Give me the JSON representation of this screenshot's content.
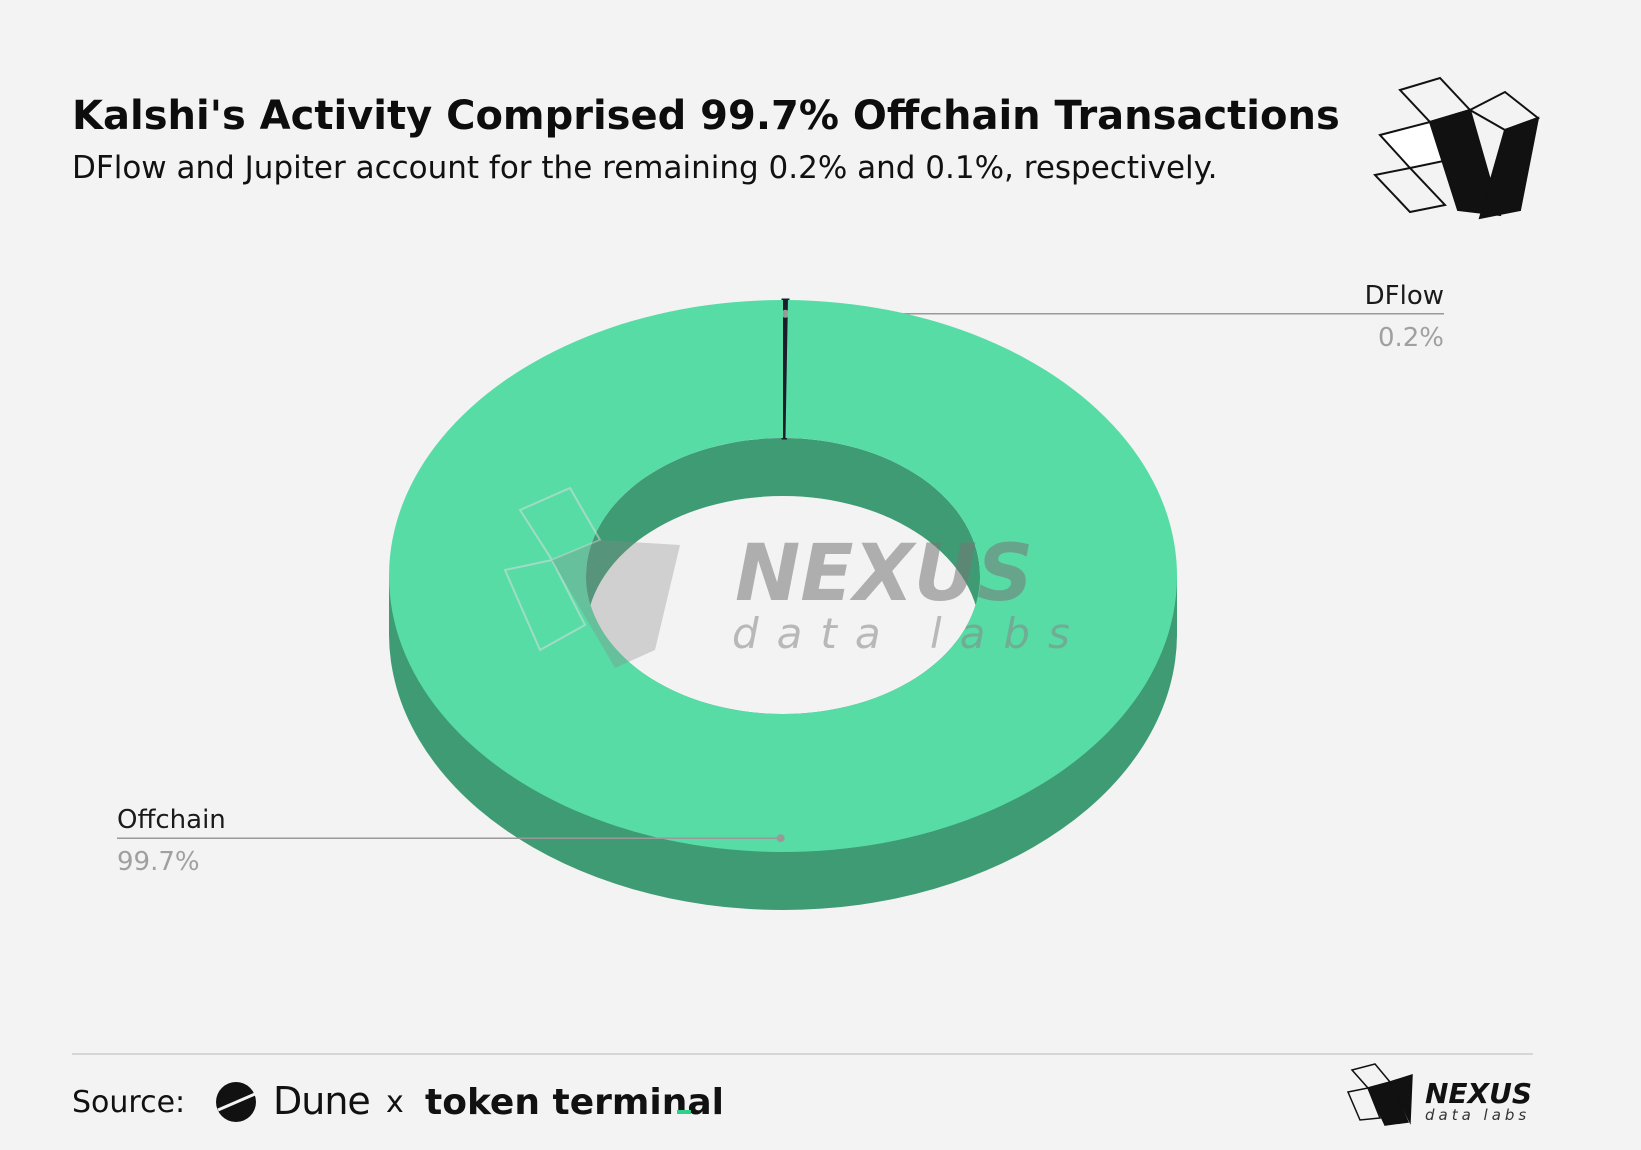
{
  "header": {
    "title": "Kalshi's Activity Comprised 99.7% Offchain Transactions",
    "subtitle": "DFlow and Jupiter account for the remaining 0.2% and 0.1%, respectively."
  },
  "chart_data": {
    "type": "donut",
    "categories": [
      "DFlow",
      "Offchain"
    ],
    "values": [
      0.2,
      99.7
    ],
    "value_labels": [
      "0.2%",
      "99.7%"
    ],
    "colors": [
      "#1c1c2b",
      "#57dca6"
    ],
    "side_color": "#3e9b74"
  },
  "watermark": {
    "name": "NEXUS",
    "tagline": "data labs"
  },
  "footer": {
    "source_label": "Source:",
    "sources": [
      "Dune",
      "x",
      "token terminal"
    ],
    "brand": "NEXUS",
    "tagline": "data labs"
  }
}
